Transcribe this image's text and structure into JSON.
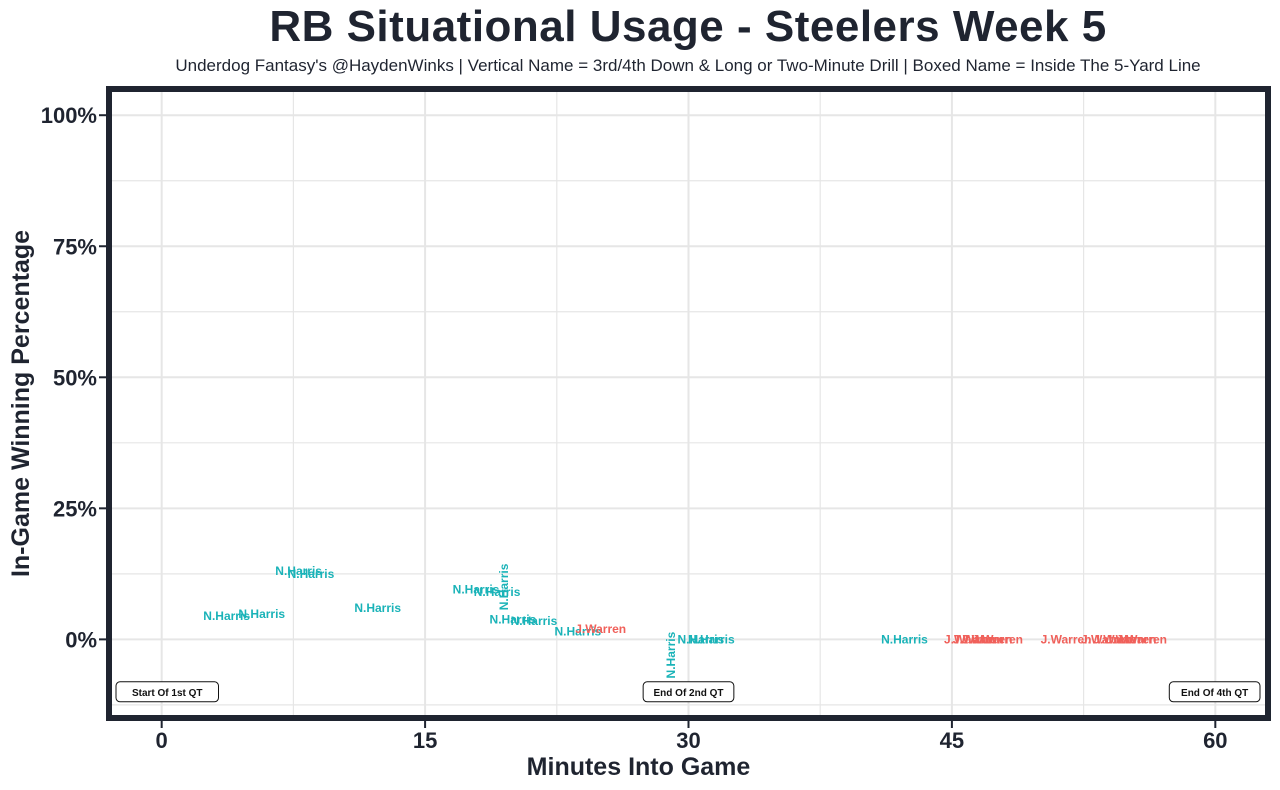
{
  "chart_data": {
    "type": "scatter",
    "title": "RB Situational Usage - Steelers Week 5",
    "subtitle": "Underdog Fantasy's @HaydenWinks | Vertical Name = 3rd/4th Down & Long or Two-Minute Drill | Boxed Name = Inside The 5-Yard Line",
    "xlabel": "Minutes Into Game",
    "ylabel": "In-Game Winning Percentage",
    "xlim": [
      -3,
      63
    ],
    "ylim": [
      -15,
      105
    ],
    "x_ticks": [
      0,
      15,
      30,
      45,
      60
    ],
    "x_tick_labels": [
      "0",
      "15",
      "30",
      "45",
      "60"
    ],
    "y_ticks": [
      0,
      25,
      50,
      75,
      100
    ],
    "y_tick_labels": [
      "0%",
      "25%",
      "50%",
      "75%",
      "100%"
    ],
    "grid": true,
    "colors": {
      "N.Harris": "#1ab3b8",
      "J.Warren": "#f0605a",
      "frame": "#1f2430",
      "grid": "#e6e6e6"
    },
    "series": [
      {
        "name": "N.Harris",
        "color": "#1ab3b8",
        "points": [
          {
            "x": 3.7,
            "y": 4.5,
            "vertical": false
          },
          {
            "x": 5.7,
            "y": 4.8,
            "vertical": false
          },
          {
            "x": 7.8,
            "y": 13.0,
            "vertical": false
          },
          {
            "x": 8.5,
            "y": 12.5,
            "vertical": false
          },
          {
            "x": 12.3,
            "y": 6.0,
            "vertical": false
          },
          {
            "x": 17.9,
            "y": 9.5,
            "vertical": false
          },
          {
            "x": 19.1,
            "y": 9.0,
            "vertical": false
          },
          {
            "x": 19.5,
            "y": 10.0,
            "vertical": true
          },
          {
            "x": 20.0,
            "y": 3.8,
            "vertical": false
          },
          {
            "x": 21.2,
            "y": 3.5,
            "vertical": false
          },
          {
            "x": 23.7,
            "y": 1.5,
            "vertical": false
          },
          {
            "x": 29.0,
            "y": -3.0,
            "vertical": true
          },
          {
            "x": 30.7,
            "y": 0.0,
            "vertical": false
          },
          {
            "x": 31.3,
            "y": 0.0,
            "vertical": false
          },
          {
            "x": 42.3,
            "y": 0.0,
            "vertical": false
          }
        ]
      },
      {
        "name": "J.Warren",
        "color": "#f0605a",
        "points": [
          {
            "x": 46.0,
            "y": 0.0,
            "vertical": false
          },
          {
            "x": 46.5,
            "y": 0.0,
            "vertical": false
          },
          {
            "x": 47.0,
            "y": 0.0,
            "vertical": false
          },
          {
            "x": 47.6,
            "y": 0.0,
            "vertical": false
          },
          {
            "x": 51.5,
            "y": 0.0,
            "vertical": false
          },
          {
            "x": 53.8,
            "y": 0.0,
            "vertical": false
          },
          {
            "x": 54.5,
            "y": 0.0,
            "vertical": false
          },
          {
            "x": 55.2,
            "y": 0.0,
            "vertical": false
          },
          {
            "x": 55.8,
            "y": 0.0,
            "vertical": false
          },
          {
            "x": 25.0,
            "y": 2.0,
            "vertical": false
          }
        ]
      }
    ],
    "annotations": [
      {
        "text": "Start Of 1st QT",
        "x": 0,
        "y": -10
      },
      {
        "text": "End Of 2nd QT",
        "x": 30,
        "y": -10
      },
      {
        "text": "End Of 4th QT",
        "x": 60,
        "y": -10
      }
    ]
  }
}
